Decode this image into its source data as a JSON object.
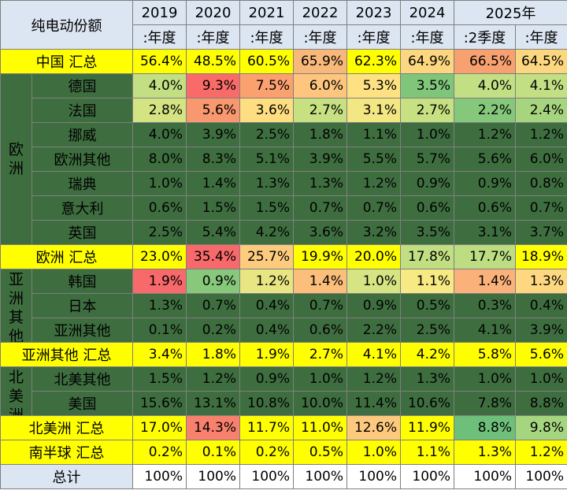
{
  "header": {
    "title": "纯电动份额",
    "years": [
      "2019",
      "2020",
      "2021",
      "2022",
      "2023",
      "2024",
      "2025年"
    ],
    "periods": [
      ":年度",
      ":年度",
      ":年度",
      ":年度",
      ":年度",
      ":年度",
      ":2季度",
      ":年度"
    ]
  },
  "regions": {
    "europe": "欧洲",
    "asia_other": "亚洲其他",
    "north_america": "北美洲"
  },
  "rows": [
    {
      "label": "中国 汇总",
      "kind": "subtotal",
      "values": [
        "56.4%",
        "48.5%",
        "60.5%",
        "65.9%",
        "62.3%",
        "64.9%",
        "66.5%",
        "64.5%"
      ],
      "colors": [
        "#ffff00",
        "#ffff00",
        "#ffff00",
        "#f8b87a",
        "#ffff00",
        "#fcd77f",
        "#f8a170",
        "#fcd77f"
      ]
    },
    {
      "label": "德国",
      "kind": "country",
      "values": [
        "4.0%",
        "9.3%",
        "7.5%",
        "6.0%",
        "5.3%",
        "3.5%",
        "4.0%",
        "4.1%"
      ],
      "colors": [
        "#c2df83",
        "#f86b69",
        "#fba06f",
        "#fdc57d",
        "#fee182",
        "#7fc57a",
        "#c2df83",
        "#c2df83"
      ]
    },
    {
      "label": "法国",
      "kind": "country",
      "values": [
        "2.8%",
        "5.6%",
        "3.6%",
        "2.7%",
        "3.1%",
        "2.7%",
        "2.2%",
        "2.4%"
      ],
      "colors": [
        "#d4e483",
        "#f8986e",
        "#fede81",
        "#c6e082",
        "#f3e783",
        "#c6e082",
        "#85c77b",
        "#a7d57f"
      ]
    },
    {
      "label": "挪威",
      "kind": "country",
      "values": [
        "4.0%",
        "3.9%",
        "2.5%",
        "1.8%",
        "1.1%",
        "1.0%",
        "1.2%",
        "1.2%"
      ],
      "colors": [
        "#3e6e3f",
        "#3e6e3f",
        "#3e6e3f",
        "#3e6e3f",
        "#3e6e3f",
        "#3e6e3f",
        "#3e6e3f",
        "#3e6e3f"
      ]
    },
    {
      "label": "欧洲其他",
      "kind": "country",
      "values": [
        "8.0%",
        "8.3%",
        "5.1%",
        "3.9%",
        "5.5%",
        "5.7%",
        "5.6%",
        "6.0%"
      ],
      "colors": [
        "#3e6e3f",
        "#3e6e3f",
        "#3e6e3f",
        "#3e6e3f",
        "#3e6e3f",
        "#3e6e3f",
        "#3e6e3f",
        "#3e6e3f"
      ]
    },
    {
      "label": "瑞典",
      "kind": "country",
      "values": [
        "1.0%",
        "1.4%",
        "1.3%",
        "1.3%",
        "1.2%",
        "0.9%",
        "0.9%",
        "0.8%"
      ],
      "colors": [
        "#3e6e3f",
        "#3e6e3f",
        "#3e6e3f",
        "#3e6e3f",
        "#3e6e3f",
        "#3e6e3f",
        "#3e6e3f",
        "#3e6e3f"
      ]
    },
    {
      "label": "意大利",
      "kind": "country",
      "values": [
        "0.6%",
        "1.5%",
        "1.5%",
        "0.7%",
        "0.7%",
        "0.6%",
        "0.6%",
        "0.7%"
      ],
      "colors": [
        "#3e6e3f",
        "#3e6e3f",
        "#3e6e3f",
        "#3e6e3f",
        "#3e6e3f",
        "#3e6e3f",
        "#3e6e3f",
        "#3e6e3f"
      ]
    },
    {
      "label": "英国",
      "kind": "country",
      "values": [
        "2.5%",
        "5.4%",
        "4.2%",
        "3.6%",
        "3.2%",
        "3.5%",
        "3.1%",
        "3.7%"
      ],
      "colors": [
        "#3e6e3f",
        "#3e6e3f",
        "#3e6e3f",
        "#3e6e3f",
        "#3e6e3f",
        "#3e6e3f",
        "#3e6e3f",
        "#3e6e3f"
      ]
    },
    {
      "label": "欧洲 汇总",
      "kind": "subtotal",
      "values": [
        "23.0%",
        "35.4%",
        "25.7%",
        "19.9%",
        "20.0%",
        "17.8%",
        "17.7%",
        "18.9%"
      ],
      "colors": [
        "#ffff00",
        "#f8696b",
        "#fdcb7d",
        "#ffff00",
        "#ffff00",
        "#c1df82",
        "#bcdd82",
        "#ffff00"
      ]
    },
    {
      "label": "韩国",
      "kind": "country",
      "values": [
        "1.9%",
        "0.9%",
        "1.2%",
        "1.4%",
        "1.0%",
        "1.1%",
        "1.4%",
        "1.3%"
      ],
      "colors": [
        "#f8696b",
        "#88c87b",
        "#e8e583",
        "#fbbe7b",
        "#d6e483",
        "#f7e983",
        "#fbb27a",
        "#fdd880"
      ]
    },
    {
      "label": "日本",
      "kind": "country",
      "values": [
        "1.3%",
        "0.7%",
        "0.4%",
        "0.7%",
        "0.9%",
        "0.5%",
        "0.3%",
        "0.4%"
      ],
      "colors": [
        "#3e6e3f",
        "#3e6e3f",
        "#3e6e3f",
        "#3e6e3f",
        "#3e6e3f",
        "#3e6e3f",
        "#3e6e3f",
        "#3e6e3f"
      ]
    },
    {
      "label": "亚洲其他",
      "kind": "country",
      "values": [
        "0.1%",
        "0.2%",
        "0.4%",
        "0.6%",
        "2.2%",
        "2.5%",
        "4.1%",
        "3.9%"
      ],
      "colors": [
        "#3e6e3f",
        "#3e6e3f",
        "#3e6e3f",
        "#3e6e3f",
        "#3e6e3f",
        "#3e6e3f",
        "#3e6e3f",
        "#3e6e3f"
      ]
    },
    {
      "label": "亚洲其他 汇总",
      "kind": "subtotal",
      "values": [
        "3.4%",
        "1.8%",
        "1.9%",
        "2.7%",
        "4.1%",
        "4.2%",
        "5.8%",
        "5.6%"
      ],
      "colors": [
        "#ffff00",
        "#ffff00",
        "#ffff00",
        "#ffff00",
        "#ffff00",
        "#ffff00",
        "#ffff00",
        "#ffff00"
      ]
    },
    {
      "label": "北美其他",
      "kind": "country",
      "values": [
        "1.5%",
        "1.2%",
        "0.9%",
        "1.0%",
        "1.2%",
        "1.3%",
        "1.0%",
        "1.0%"
      ],
      "colors": [
        "#3e6e3f",
        "#3e6e3f",
        "#3e6e3f",
        "#3e6e3f",
        "#3e6e3f",
        "#3e6e3f",
        "#3e6e3f",
        "#3e6e3f"
      ]
    },
    {
      "label": "美国",
      "kind": "country",
      "values": [
        "15.6%",
        "13.1%",
        "10.8%",
        "10.0%",
        "11.4%",
        "10.6%",
        "7.8%",
        "8.8%"
      ],
      "colors": [
        "#3e6e3f",
        "#3e6e3f",
        "#3e6e3f",
        "#3e6e3f",
        "#3e6e3f",
        "#3e6e3f",
        "#3e6e3f",
        "#3e6e3f"
      ]
    },
    {
      "label": "北美洲 汇总",
      "kind": "subtotal",
      "values": [
        "17.0%",
        "14.3%",
        "11.7%",
        "11.0%",
        "12.6%",
        "11.9%",
        "8.8%",
        "9.8%"
      ],
      "colors": [
        "#ffff00",
        "#f8806d",
        "#ffff00",
        "#ffff00",
        "#fdca7d",
        "#ffff00",
        "#6dbf79",
        "#a6d57f"
      ]
    },
    {
      "label": "南半球 汇总",
      "kind": "subtotal",
      "values": [
        "0.2%",
        "0.1%",
        "0.2%",
        "0.5%",
        "1.0%",
        "1.1%",
        "1.3%",
        "1.2%"
      ],
      "colors": [
        "#ffff00",
        "#ffff00",
        "#ffff00",
        "#ffff00",
        "#ffff00",
        "#ffff00",
        "#ffff00",
        "#ffff00"
      ]
    },
    {
      "label": "总计",
      "kind": "total",
      "values": [
        "100%",
        "100%",
        "100%",
        "100%",
        "100%",
        "100%",
        "100%",
        "100%"
      ],
      "colors": [
        "#ffffff",
        "#ffffff",
        "#ffffff",
        "#ffffff",
        "#ffffff",
        "#ffffff",
        "#ffffff",
        "#ffffff"
      ]
    }
  ]
}
